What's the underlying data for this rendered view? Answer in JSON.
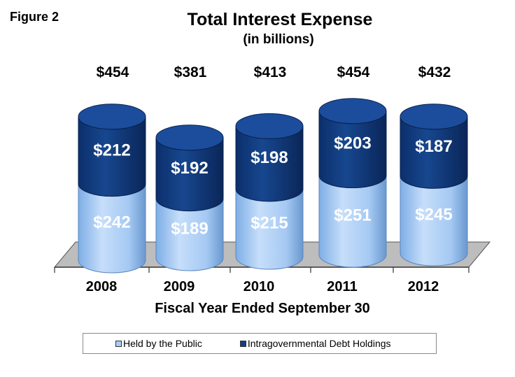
{
  "figure_label": "Figure 2",
  "colors": {
    "public": "#a9cdf6",
    "public_dark": "#6f9fd6",
    "public_top": "#cfe3fb",
    "intragov": "#123e85",
    "intragov_dark": "#0a2a62",
    "intragov_top": "#1c4d9c",
    "floor": "#bdbdbd",
    "floor_edge": "#555555"
  },
  "chart_data": {
    "type": "bar",
    "stacked": true,
    "title": "Total Interest Expense",
    "subtitle": "(in billions)",
    "xlabel": "Fiscal Year Ended September 30",
    "ylabel": "",
    "categories": [
      "2008",
      "2009",
      "2010",
      "2011",
      "2012"
    ],
    "series": [
      {
        "name": "Held by the Public",
        "values": [
          242,
          189,
          215,
          251,
          245
        ],
        "labels": [
          "$242",
          "$189",
          "$215",
          "$251",
          "$245"
        ]
      },
      {
        "name": "Intragovernmental Debt Holdings",
        "values": [
          212,
          192,
          198,
          203,
          187
        ],
        "labels": [
          "$212",
          "$192",
          "$198",
          "$203",
          "$187"
        ]
      }
    ],
    "totals": [
      454,
      381,
      413,
      454,
      432
    ],
    "total_labels": [
      "$454",
      "$381",
      "$413",
      "$454",
      "$432"
    ],
    "legend": {
      "position": "bottom"
    },
    "grid": false
  }
}
